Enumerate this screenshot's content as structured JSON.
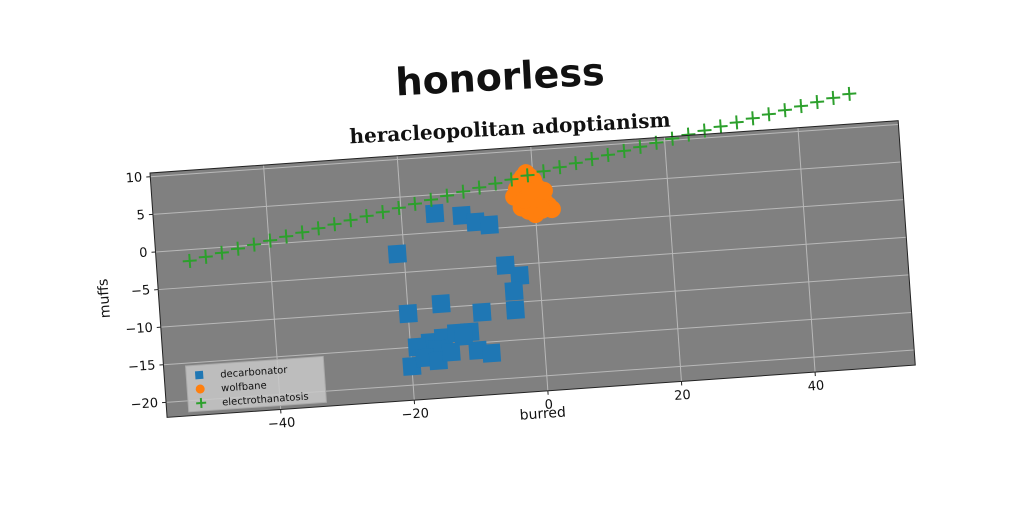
{
  "page": {
    "title": "honorless"
  },
  "chart_data": {
    "type": "scatter",
    "title": "heracleopolitan adoptianism",
    "xlabel": "burred",
    "ylabel": "muffs",
    "xlim": [
      -57,
      55
    ],
    "ylim": [
      -22,
      10.5
    ],
    "xticks": [
      -40,
      -20,
      0,
      20,
      40
    ],
    "yticks": [
      -20,
      -15,
      -10,
      -5,
      0,
      5,
      10
    ],
    "xtick_labels": [
      "−40",
      "−20",
      "0",
      "20",
      "40"
    ],
    "ytick_labels": [
      "−20",
      "−15",
      "−10",
      "−5",
      "0",
      "5",
      "10"
    ],
    "grid": true,
    "legend_position": "lower-left",
    "background_color": "#808080",
    "series": [
      {
        "name": "decarbonator",
        "marker": "square",
        "color": "#1f77b4",
        "x": [
          -15,
          -11,
          -9,
          -7,
          -21,
          -5,
          -3,
          -4,
          -20,
          -15,
          -9,
          -4,
          -17,
          -15,
          -13,
          -11,
          -16,
          -19,
          -20,
          -10,
          -8,
          -12,
          -18,
          -16,
          -14
        ],
        "y": [
          2.5,
          2,
          1,
          0.5,
          -2.5,
          -5,
          -6.5,
          -8.5,
          -10.5,
          -9.5,
          -11,
          -11,
          -14.5,
          -14,
          -13.5,
          -13.5,
          -15.5,
          -15,
          -17.5,
          -16,
          -16.5,
          -14,
          -16.5,
          -17,
          -16
        ]
      },
      {
        "name": "wolfbane",
        "marker": "circle",
        "color": "#ff7f0e",
        "x": [
          -3,
          -2.5,
          -2,
          -1.5,
          -1,
          -0.5,
          0,
          0.5,
          1,
          1.5,
          2,
          2.5,
          -2,
          -1,
          0,
          1,
          -1.5,
          0.5,
          1.5,
          -0.5
        ],
        "y": [
          4,
          5,
          6,
          6.5,
          7,
          6.5,
          6,
          5,
          4,
          3,
          2.5,
          2,
          2.5,
          2,
          1.5,
          2,
          3.5,
          3.5,
          4.5,
          4.5
        ]
      },
      {
        "name": "electrothanatosis",
        "marker": "plus",
        "color": "#2ca02c",
        "line": {
          "x_start": -52,
          "x_end": 48,
          "y_start": -1.5,
          "y_end": 14.5,
          "count": 42
        }
      }
    ]
  }
}
